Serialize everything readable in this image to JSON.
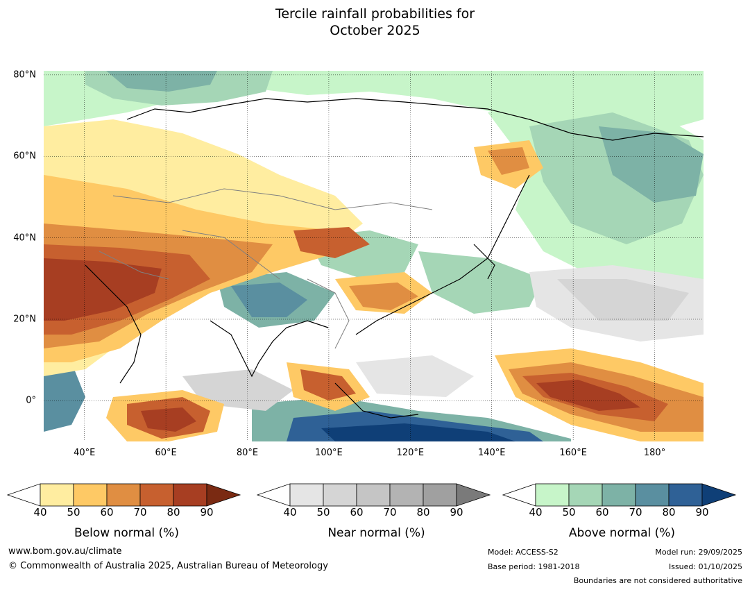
{
  "title": {
    "line1": "Tercile rainfall probabilities for",
    "line2": "October 2025"
  },
  "map": {
    "region": "Asia",
    "latitudes": [
      {
        "label": "80°N",
        "value": 80
      },
      {
        "label": "60°N",
        "value": 60
      },
      {
        "label": "40°N",
        "value": 40
      },
      {
        "label": "20°N",
        "value": 20
      },
      {
        "label": "0°",
        "value": 0
      }
    ],
    "longitudes": [
      {
        "label": "40°E",
        "value": 40
      },
      {
        "label": "60°E",
        "value": 60
      },
      {
        "label": "80°E",
        "value": 80
      },
      {
        "label": "100°E",
        "value": 100
      },
      {
        "label": "120°E",
        "value": 120
      },
      {
        "label": "140°E",
        "value": 140
      },
      {
        "label": "160°E",
        "value": 160
      },
      {
        "label": "180°",
        "value": 180
      }
    ],
    "lon_range": [
      30,
      192
    ],
    "lat_range": [
      -10,
      81
    ]
  },
  "legends": [
    {
      "id": "below",
      "title": "Below normal (%)",
      "ticks": [
        "40",
        "50",
        "60",
        "70",
        "80",
        "90"
      ],
      "colors": [
        "#ffffff",
        "#ffeda0",
        "#fec965",
        "#e08e42",
        "#c7602f",
        "#a73e22",
        "#7a2a12"
      ]
    },
    {
      "id": "near",
      "title": "Near normal (%)",
      "ticks": [
        "40",
        "50",
        "60",
        "70",
        "80",
        "90"
      ],
      "colors": [
        "#ffffff",
        "#e5e5e5",
        "#d5d5d5",
        "#c5c5c5",
        "#b3b3b3",
        "#a0a0a0",
        "#7a7a7a"
      ]
    },
    {
      "id": "above",
      "title": "Above normal (%)",
      "ticks": [
        "40",
        "50",
        "60",
        "70",
        "80",
        "90"
      ],
      "colors": [
        "#ffffff",
        "#c7f5c9",
        "#a5d6b6",
        "#7db2a6",
        "#5a8fa0",
        "#2f6196",
        "#0f3f77"
      ]
    }
  ],
  "footer": {
    "website": "www.bom.gov.au/climate",
    "copyright": "© Commonwealth of Australia 2025, Australian Bureau of Meteorology",
    "model": "Model: ACCESS-S2",
    "base_period": "Base period: 1981-2018",
    "model_run": "Model run: 29/09/2025",
    "issued": "Issued: 01/10/2025",
    "boundaries": "Boundaries are not considered authoritative"
  }
}
